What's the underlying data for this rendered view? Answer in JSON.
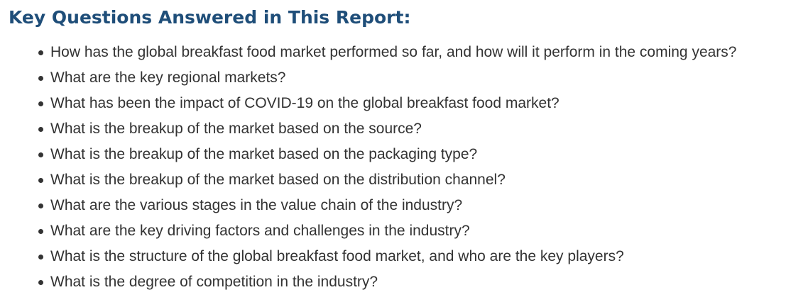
{
  "section": {
    "title": "Key Questions Answered in This Report:",
    "questions": [
      "How has the global breakfast food market performed so far, and how will it perform in the coming years?",
      "What are the key regional markets?",
      "What has been the impact of COVID-19 on the global breakfast food market?",
      "What is the breakup of the market based on the source?",
      "What is the breakup of the market based on the packaging type?",
      "What is the breakup of the market based on the distribution channel?",
      "What are the various stages in the value chain of the industry?",
      "What are the key driving factors and challenges in the industry?",
      "What is the structure of the global breakfast food market, and who are the key players?",
      "What is the degree of competition in the industry?"
    ]
  },
  "colors": {
    "title": "#1f4e79",
    "text": "#333333",
    "background": "#ffffff"
  }
}
